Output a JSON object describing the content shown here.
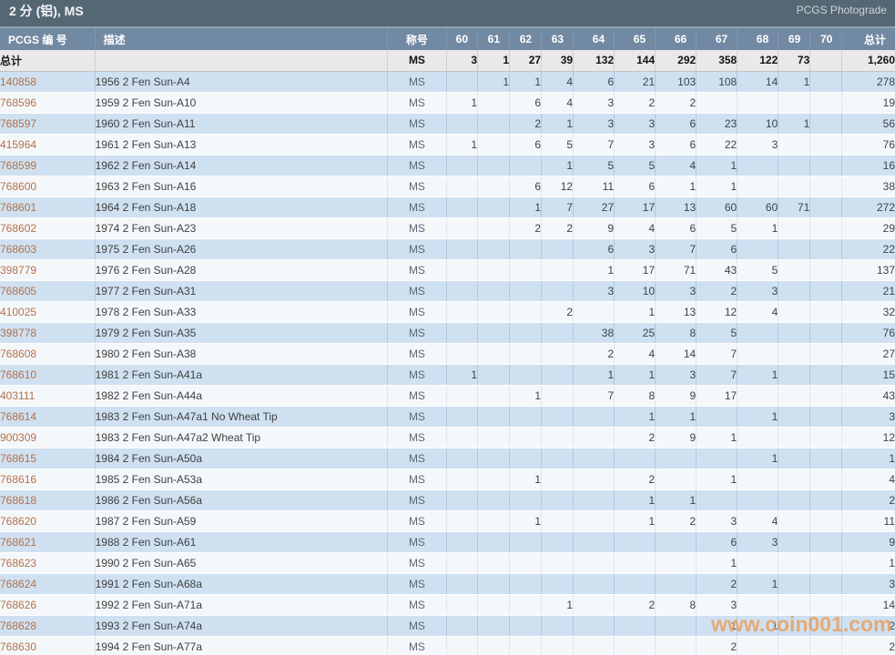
{
  "page": {
    "title": "2 分 (铝), MS",
    "brand": "PCGS Photograde",
    "watermark": "www.coin001.com"
  },
  "colors": {
    "title_bar": "#566774",
    "header_row": "#7289a3",
    "row_blue": "#cfe1f1",
    "row_light": "#f5f8fb",
    "totals_row": "#e9e9e9",
    "pcgs_link": "#b3714a",
    "watermark": "#e9a263"
  },
  "table": {
    "headers": {
      "pcgs": "PCGS 编 号",
      "desc": "描述",
      "designation": "称号",
      "total": "总计"
    },
    "grade_columns": [
      "60",
      "61",
      "62",
      "63",
      "64",
      "65",
      "66",
      "67",
      "68",
      "69",
      "70"
    ],
    "totals": {
      "label": "总计",
      "designation": "MS",
      "grades": [
        "3",
        "1",
        "27",
        "39",
        "132",
        "144",
        "292",
        "358",
        "122",
        "73",
        ""
      ],
      "total": "1,260"
    },
    "rows": [
      {
        "pcgs": "140858",
        "desc": "1956 2 Fen Sun-A4",
        "designation": "MS",
        "grades": [
          "",
          "1",
          "1",
          "4",
          "6",
          "21",
          "103",
          "108",
          "14",
          "1",
          ""
        ],
        "total": "278"
      },
      {
        "pcgs": "768596",
        "desc": "1959 2 Fen Sun-A10",
        "designation": "MS",
        "grades": [
          "1",
          "",
          "6",
          "4",
          "3",
          "2",
          "2",
          "",
          "",
          "",
          ""
        ],
        "total": "19"
      },
      {
        "pcgs": "768597",
        "desc": "1960 2 Fen Sun-A11",
        "designation": "MS",
        "grades": [
          "",
          "",
          "2",
          "1",
          "3",
          "3",
          "6",
          "23",
          "10",
          "1",
          ""
        ],
        "total": "56"
      },
      {
        "pcgs": "415964",
        "desc": "1961 2 Fen Sun-A13",
        "designation": "MS",
        "grades": [
          "1",
          "",
          "6",
          "5",
          "7",
          "3",
          "6",
          "22",
          "3",
          "",
          ""
        ],
        "total": "76"
      },
      {
        "pcgs": "768599",
        "desc": "1962 2 Fen Sun-A14",
        "designation": "MS",
        "grades": [
          "",
          "",
          "",
          "1",
          "5",
          "5",
          "4",
          "1",
          "",
          "",
          ""
        ],
        "total": "16"
      },
      {
        "pcgs": "768600",
        "desc": "1963 2 Fen Sun-A16",
        "designation": "MS",
        "grades": [
          "",
          "",
          "6",
          "12",
          "11",
          "6",
          "1",
          "1",
          "",
          "",
          ""
        ],
        "total": "38"
      },
      {
        "pcgs": "768601",
        "desc": "1964 2 Fen Sun-A18",
        "designation": "MS",
        "grades": [
          "",
          "",
          "1",
          "7",
          "27",
          "17",
          "13",
          "60",
          "60",
          "71",
          ""
        ],
        "total": "272"
      },
      {
        "pcgs": "768602",
        "desc": "1974 2 Fen Sun-A23",
        "designation": "MS",
        "grades": [
          "",
          "",
          "2",
          "2",
          "9",
          "4",
          "6",
          "5",
          "1",
          "",
          ""
        ],
        "total": "29"
      },
      {
        "pcgs": "768603",
        "desc": "1975 2 Fen Sun-A26",
        "designation": "MS",
        "grades": [
          "",
          "",
          "",
          "",
          "6",
          "3",
          "7",
          "6",
          "",
          "",
          ""
        ],
        "total": "22"
      },
      {
        "pcgs": "398779",
        "desc": "1976 2 Fen Sun-A28",
        "designation": "MS",
        "grades": [
          "",
          "",
          "",
          "",
          "1",
          "17",
          "71",
          "43",
          "5",
          "",
          ""
        ],
        "total": "137"
      },
      {
        "pcgs": "768605",
        "desc": "1977 2 Fen Sun-A31",
        "designation": "MS",
        "grades": [
          "",
          "",
          "",
          "",
          "3",
          "10",
          "3",
          "2",
          "3",
          "",
          ""
        ],
        "total": "21"
      },
      {
        "pcgs": "410025",
        "desc": "1978 2 Fen Sun-A33",
        "designation": "MS",
        "grades": [
          "",
          "",
          "",
          "2",
          "",
          "1",
          "13",
          "12",
          "4",
          "",
          ""
        ],
        "total": "32"
      },
      {
        "pcgs": "398778",
        "desc": "1979 2 Fen Sun-A35",
        "designation": "MS",
        "grades": [
          "",
          "",
          "",
          "",
          "38",
          "25",
          "8",
          "5",
          "",
          "",
          ""
        ],
        "total": "76"
      },
      {
        "pcgs": "768608",
        "desc": "1980 2 Fen Sun-A38",
        "designation": "MS",
        "grades": [
          "",
          "",
          "",
          "",
          "2",
          "4",
          "14",
          "7",
          "",
          "",
          ""
        ],
        "total": "27"
      },
      {
        "pcgs": "768610",
        "desc": "1981 2 Fen Sun-A41a",
        "designation": "MS",
        "grades": [
          "1",
          "",
          "",
          "",
          "1",
          "1",
          "3",
          "7",
          "1",
          "",
          ""
        ],
        "total": "15"
      },
      {
        "pcgs": "403111",
        "desc": "1982 2 Fen Sun-A44a",
        "designation": "MS",
        "grades": [
          "",
          "",
          "1",
          "",
          "7",
          "8",
          "9",
          "17",
          "",
          "",
          ""
        ],
        "total": "43"
      },
      {
        "pcgs": "768614",
        "desc": "1983 2 Fen Sun-A47a1 No Wheat Tip",
        "designation": "MS",
        "grades": [
          "",
          "",
          "",
          "",
          "",
          "1",
          "1",
          "",
          "1",
          "",
          ""
        ],
        "total": "3"
      },
      {
        "pcgs": "900309",
        "desc": "1983 2 Fen Sun-A47a2 Wheat Tip",
        "designation": "MS",
        "grades": [
          "",
          "",
          "",
          "",
          "",
          "2",
          "9",
          "1",
          "",
          "",
          ""
        ],
        "total": "12"
      },
      {
        "pcgs": "768615",
        "desc": "1984 2 Fen Sun-A50a",
        "designation": "MS",
        "grades": [
          "",
          "",
          "",
          "",
          "",
          "",
          "",
          "",
          "1",
          "",
          ""
        ],
        "total": "1"
      },
      {
        "pcgs": "768616",
        "desc": "1985 2 Fen Sun-A53a",
        "designation": "MS",
        "grades": [
          "",
          "",
          "1",
          "",
          "",
          "2",
          "",
          "1",
          "",
          "",
          ""
        ],
        "total": "4"
      },
      {
        "pcgs": "768618",
        "desc": "1986 2 Fen Sun-A56a",
        "designation": "MS",
        "grades": [
          "",
          "",
          "",
          "",
          "",
          "1",
          "1",
          "",
          "",
          "",
          ""
        ],
        "total": "2"
      },
      {
        "pcgs": "768620",
        "desc": "1987 2 Fen Sun-A59",
        "designation": "MS",
        "grades": [
          "",
          "",
          "1",
          "",
          "",
          "1",
          "2",
          "3",
          "4",
          "",
          ""
        ],
        "total": "11"
      },
      {
        "pcgs": "768621",
        "desc": "1988 2 Fen Sun-A61",
        "designation": "MS",
        "grades": [
          "",
          "",
          "",
          "",
          "",
          "",
          "",
          "6",
          "3",
          "",
          ""
        ],
        "total": "9"
      },
      {
        "pcgs": "768623",
        "desc": "1990 2 Fen Sun-A65",
        "designation": "MS",
        "grades": [
          "",
          "",
          "",
          "",
          "",
          "",
          "",
          "1",
          "",
          "",
          ""
        ],
        "total": "1"
      },
      {
        "pcgs": "768624",
        "desc": "1991 2 Fen Sun-A68a",
        "designation": "MS",
        "grades": [
          "",
          "",
          "",
          "",
          "",
          "",
          "",
          "2",
          "1",
          "",
          ""
        ],
        "total": "3"
      },
      {
        "pcgs": "768626",
        "desc": "1992 2 Fen Sun-A71a",
        "designation": "MS",
        "grades": [
          "",
          "",
          "",
          "1",
          "",
          "2",
          "8",
          "3",
          "",
          "",
          ""
        ],
        "total": "14"
      },
      {
        "pcgs": "768628",
        "desc": "1993 2 Fen Sun-A74a",
        "designation": "MS",
        "grades": [
          "",
          "",
          "",
          "",
          "",
          "",
          "",
          "1",
          "1",
          "",
          ""
        ],
        "total": "2"
      },
      {
        "pcgs": "768630",
        "desc": "1994 2 Fen Sun-A77a",
        "designation": "MS",
        "grades": [
          "",
          "",
          "",
          "",
          "",
          "",
          "",
          "2",
          "",
          "",
          ""
        ],
        "total": "2"
      }
    ]
  }
}
